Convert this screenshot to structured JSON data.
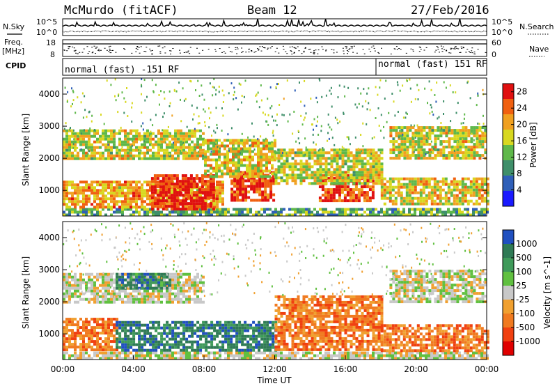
{
  "header": {
    "station": "McMurdo (fitACF)",
    "beam": "Beam 12",
    "date": "27/Feb/2016"
  },
  "left_labels": {
    "nsky": "N.Sky",
    "freq_line1": "Freq.",
    "freq_line2": "[MHz]",
    "cpid": "CPID"
  },
  "right_labels": {
    "nsearch": "N.Search",
    "nave": "Nave"
  },
  "noise_panel": {
    "left_ticks": [
      "10^5",
      "10^0"
    ],
    "right_ticks": [
      "10^5",
      "10^0"
    ]
  },
  "freq_panel": {
    "left_ticks": [
      "18",
      "8"
    ],
    "right_ticks": [
      "60",
      "0"
    ]
  },
  "cpid_panel": {
    "segments": [
      {
        "label": "normal (fast) -151 RF",
        "start_hour": 0,
        "end_hour": 18
      },
      {
        "label": "normal (fast) 151 RF",
        "start_hour": 18,
        "end_hour": 24
      }
    ]
  },
  "chart_data": [
    {
      "type": "heatmap",
      "name": "power",
      "ylabel": "Slant Range [km]",
      "xlabel": "",
      "xlim": [
        0,
        24
      ],
      "ylim": [
        200,
        4500
      ],
      "yticks": [
        1000,
        2000,
        3000,
        4000
      ],
      "xticks": [
        "00:00",
        "04:00",
        "08:00",
        "12:00",
        "16:00",
        "20:00",
        "00:00"
      ],
      "colorbar": {
        "label": "Power [dB]",
        "ticks": [
          4,
          8,
          12,
          16,
          20,
          24,
          28
        ],
        "range": [
          0,
          30
        ],
        "colors": [
          "#1a1aff",
          "#2f5fb8",
          "#3f8f6a",
          "#5fb84a",
          "#d8d820",
          "#f0a020",
          "#f06010",
          "#e01010"
        ]
      },
      "echo_regions": [
        {
          "x0": 0.0,
          "x1": 24.0,
          "y0": 250,
          "y1": 450,
          "level": 0.3
        },
        {
          "x0": 0.0,
          "x1": 9.0,
          "y0": 500,
          "y1": 1300,
          "level": 0.65
        },
        {
          "x0": 5.0,
          "x1": 8.5,
          "y0": 450,
          "y1": 1500,
          "level": 0.95
        },
        {
          "x0": 9.5,
          "x1": 12.0,
          "y0": 700,
          "y1": 1600,
          "level": 0.9
        },
        {
          "x0": 14.5,
          "x1": 17.5,
          "y0": 700,
          "y1": 1500,
          "level": 0.85
        },
        {
          "x0": 18.0,
          "x1": 24.0,
          "y0": 600,
          "y1": 1400,
          "level": 0.55
        },
        {
          "x0": 0.0,
          "x1": 8.0,
          "y0": 2000,
          "y1": 2900,
          "level": 0.5
        },
        {
          "x0": 8.0,
          "x1": 12.0,
          "y0": 1400,
          "y1": 2600,
          "level": 0.55
        },
        {
          "x0": 12.0,
          "x1": 18.0,
          "y0": 1200,
          "y1": 2300,
          "level": 0.5
        },
        {
          "x0": 18.5,
          "x1": 24.0,
          "y0": 2000,
          "y1": 3000,
          "level": 0.5
        }
      ]
    },
    {
      "type": "heatmap",
      "name": "velocity",
      "ylabel": "Slant Range [km]",
      "xlabel": "Time UT",
      "xlim": [
        0,
        24
      ],
      "ylim": [
        200,
        4500
      ],
      "yticks": [
        1000,
        2000,
        3000,
        4000
      ],
      "xticks": [
        "00:00",
        "04:00",
        "08:00",
        "12:00",
        "16:00",
        "20:00",
        "00:00"
      ],
      "colorbar": {
        "label": "Velocity [m s^-1]",
        "ticks": [
          1000,
          500,
          100,
          25,
          -25,
          -100,
          -500,
          -1000
        ],
        "colors": [
          "#2050c0",
          "#2f7a55",
          "#3f9a5a",
          "#60c040",
          "#c8c8c8",
          "#f0a030",
          "#f07a20",
          "#f04010",
          "#e00000"
        ]
      },
      "echo_regions": [
        {
          "x0": 0.0,
          "x1": 24.0,
          "y0": 250,
          "y1": 450,
          "level": 4
        },
        {
          "x0": 0.0,
          "x1": 3.0,
          "y0": 500,
          "y1": 1500,
          "level": 6
        },
        {
          "x0": 3.0,
          "x1": 12.0,
          "y0": 500,
          "y1": 1400,
          "level": 1
        },
        {
          "x0": 12.0,
          "x1": 18.0,
          "y0": 500,
          "y1": 2200,
          "level": 6
        },
        {
          "x0": 18.0,
          "x1": 24.0,
          "y0": 500,
          "y1": 1300,
          "level": 6
        },
        {
          "x0": 0.0,
          "x1": 8.0,
          "y0": 2000,
          "y1": 2900,
          "level": 4
        },
        {
          "x0": 3.0,
          "x1": 6.0,
          "y0": 2400,
          "y1": 2900,
          "level": 1
        },
        {
          "x0": 18.5,
          "x1": 24.0,
          "y0": 2000,
          "y1": 3000,
          "level": 4
        }
      ]
    }
  ]
}
